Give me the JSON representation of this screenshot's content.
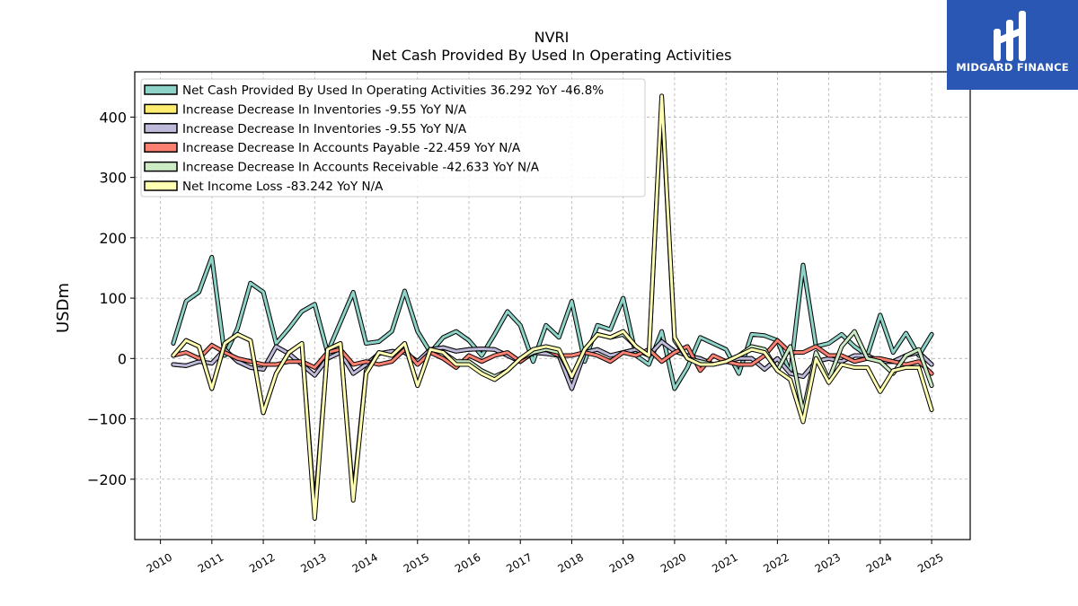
{
  "chart_data": {
    "type": "line",
    "title": "NVRI",
    "subtitle": "Net Cash Provided By Used In Operating Activities",
    "ylabel": "USDm",
    "xlabel": "",
    "xlim": [
      2009.5,
      2025.75
    ],
    "ylim": [
      -300,
      475
    ],
    "yticks": [
      -200,
      -100,
      0,
      100,
      200,
      300,
      400
    ],
    "ytick_labels": [
      "−200",
      "−100",
      "0",
      "100",
      "200",
      "300",
      "400"
    ],
    "xticks": [
      2010,
      2011,
      2012,
      2013,
      2014,
      2015,
      2016,
      2017,
      2018,
      2019,
      2020,
      2021,
      2022,
      2023,
      2024,
      2025
    ],
    "xtick_labels": [
      "2010",
      "2011",
      "2012",
      "2013",
      "2014",
      "2015",
      "2016",
      "2017",
      "2018",
      "2019",
      "2020",
      "2021",
      "2022",
      "2023",
      "2024",
      "2025"
    ],
    "grid": true,
    "legend_position": "top-left",
    "x": [
      2010.25,
      2010.5,
      2010.75,
      2011.0,
      2011.25,
      2011.5,
      2011.75,
      2012.0,
      2012.25,
      2012.5,
      2012.75,
      2013.0,
      2013.25,
      2013.5,
      2013.75,
      2014.0,
      2014.25,
      2014.5,
      2014.75,
      2015.0,
      2015.25,
      2015.5,
      2015.75,
      2016.0,
      2016.25,
      2016.5,
      2016.75,
      2017.0,
      2017.25,
      2017.5,
      2017.75,
      2018.0,
      2018.25,
      2018.5,
      2018.75,
      2019.0,
      2019.25,
      2019.5,
      2019.75,
      2020.0,
      2020.25,
      2020.5,
      2020.75,
      2021.0,
      2021.25,
      2021.5,
      2021.75,
      2022.0,
      2022.25,
      2022.5,
      2022.75,
      2023.0,
      2023.25,
      2023.5,
      2023.75,
      2024.0,
      2024.25,
      2024.5,
      2024.75,
      2025.0
    ],
    "series": [
      {
        "name": "Net Cash Provided By Used In Operating Activities  36.292 YoY -46.8%",
        "color": "#8dd3c7",
        "values": [
          25,
          95,
          110,
          168,
          5,
          50,
          125,
          110,
          25,
          50,
          78,
          90,
          10,
          60,
          110,
          25,
          28,
          45,
          112,
          45,
          10,
          35,
          45,
          30,
          5,
          40,
          78,
          55,
          -5,
          55,
          35,
          95,
          -5,
          55,
          48,
          100,
          5,
          -10,
          45,
          -50,
          -15,
          35,
          25,
          15,
          -25,
          40,
          38,
          30,
          -25,
          155,
          20,
          25,
          40,
          20,
          5,
          72,
          10,
          42,
          5,
          40
        ]
      },
      {
        "name": "Increase Decrease In Inventories  -9.55 YoY N/A",
        "color": "#ffed6f",
        "values": [
          -10,
          -12,
          -5,
          -8,
          15,
          -5,
          -15,
          -18,
          20,
          8,
          -10,
          -28,
          0,
          10,
          -25,
          -10,
          8,
          12,
          10,
          -5,
          15,
          18,
          12,
          15,
          16,
          15,
          5,
          -5,
          10,
          8,
          5,
          -50,
          10,
          15,
          5,
          10,
          15,
          5,
          28,
          12,
          5,
          0,
          -10,
          -5,
          0,
          0,
          -18,
          0,
          -25,
          -30,
          -5,
          0,
          -5,
          5,
          5,
          -5,
          -5,
          5,
          10,
          -10
        ]
      },
      {
        "name": "Increase Decrease In Inventories  -9.55 YoY N/A",
        "color": "#bebada",
        "values": [
          -10,
          -12,
          -5,
          -8,
          15,
          -5,
          -15,
          -18,
          20,
          8,
          -10,
          -28,
          0,
          10,
          -25,
          -10,
          8,
          12,
          10,
          -5,
          15,
          18,
          12,
          15,
          16,
          15,
          5,
          -5,
          10,
          8,
          5,
          -50,
          10,
          15,
          5,
          10,
          15,
          5,
          28,
          12,
          5,
          0,
          -10,
          -5,
          0,
          0,
          -18,
          0,
          -25,
          -30,
          -5,
          0,
          -5,
          5,
          5,
          -5,
          -5,
          5,
          10,
          -10
        ]
      },
      {
        "name": "Increase Decrease In Accounts Payable  -22.459 YoY N/A",
        "color": "#fb8072",
        "values": [
          5,
          10,
          0,
          22,
          10,
          0,
          -5,
          -10,
          -10,
          -5,
          -5,
          -15,
          10,
          15,
          -10,
          -5,
          -10,
          -5,
          15,
          -10,
          10,
          0,
          -15,
          5,
          -5,
          5,
          10,
          -5,
          10,
          15,
          5,
          5,
          10,
          5,
          -5,
          10,
          5,
          15,
          -5,
          10,
          20,
          -20,
          5,
          -5,
          -10,
          -10,
          5,
          30,
          10,
          10,
          20,
          5,
          5,
          -5,
          0,
          0,
          -5,
          -10,
          -5,
          -25
        ]
      },
      {
        "name": "Increase Decrease In Accounts Receivable  -42.633 YoY N/A",
        "color": "#ccebc5",
        "values": [
          5,
          30,
          20,
          -50,
          25,
          40,
          30,
          -90,
          -25,
          10,
          25,
          -255,
          15,
          25,
          -230,
          -20,
          10,
          5,
          25,
          -45,
          15,
          10,
          -5,
          -5,
          -20,
          -30,
          -20,
          0,
          10,
          15,
          10,
          -30,
          15,
          40,
          35,
          40,
          20,
          5,
          430,
          30,
          0,
          -5,
          -10,
          -5,
          5,
          20,
          15,
          -20,
          20,
          -90,
          10,
          -35,
          20,
          45,
          0,
          -5,
          -25,
          5,
          15,
          -45
        ]
      },
      {
        "name": "Net Income Loss  -83.242 YoY N/A",
        "color": "#ffffb3",
        "values": [
          5,
          30,
          20,
          -50,
          25,
          40,
          30,
          -90,
          -25,
          10,
          25,
          -265,
          15,
          25,
          -235,
          -25,
          10,
          5,
          25,
          -45,
          15,
          10,
          -10,
          -10,
          -25,
          -35,
          -20,
          0,
          15,
          20,
          15,
          -30,
          15,
          40,
          35,
          45,
          20,
          5,
          435,
          35,
          0,
          -10,
          -10,
          -5,
          5,
          15,
          10,
          -20,
          -35,
          -105,
          0,
          -40,
          -10,
          -15,
          -15,
          -55,
          -20,
          -15,
          -15,
          -85
        ]
      }
    ]
  },
  "brand": {
    "name": "MIDGARD FINANCE",
    "bg_color": "#2a57b3"
  }
}
